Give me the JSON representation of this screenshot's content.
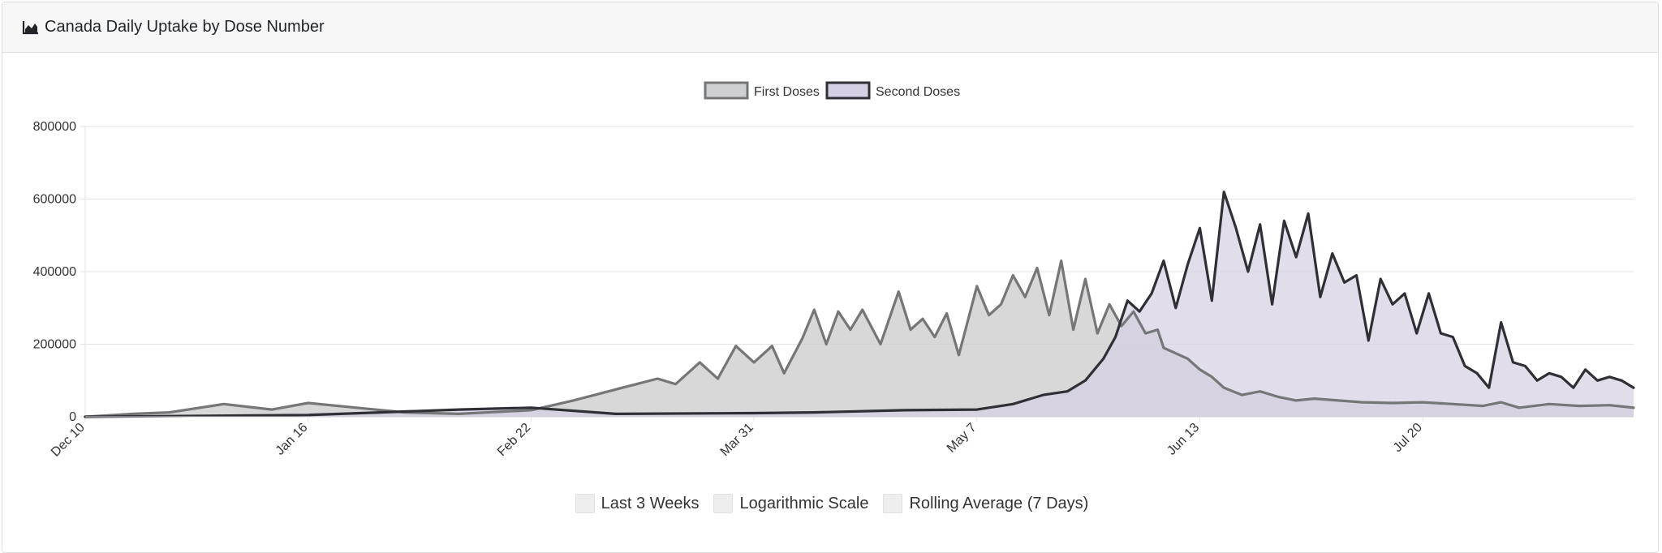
{
  "header": {
    "title": "Canada Daily Uptake by Dose Number",
    "icon": "area-chart-icon"
  },
  "controls": [
    {
      "label": "Last 3 Weeks",
      "checked": false
    },
    {
      "label": "Logarithmic Scale",
      "checked": false
    },
    {
      "label": "Rolling Average (7 Days)",
      "checked": false
    }
  ],
  "colors": {
    "first_line": "#747678",
    "first_fill": "#cfd0d1",
    "second_line": "#2f3035",
    "second_fill": "#d5d0e3",
    "grid": "#e3e3e3",
    "axis_text": "#333333"
  },
  "chart_data": {
    "type": "area",
    "title": "",
    "xlabel": "",
    "ylabel": "",
    "ylim": [
      0,
      800000
    ],
    "y_ticks": [
      0,
      200000,
      400000,
      600000,
      800000
    ],
    "y_tick_labels": [
      "0",
      "200000",
      "400000",
      "600000",
      "800000"
    ],
    "x_ticks": [
      "Dec 10",
      "Jan 16",
      "Feb 22",
      "Mar 31",
      "May 7",
      "Jun 13",
      "Jul 20"
    ],
    "x_start": "2020-12-10",
    "x_end": "2021-08-24",
    "legend_position": "top-center",
    "grid": true,
    "series": [
      {
        "name": "First Doses",
        "x": [
          "2020-12-10",
          "2020-12-18",
          "2020-12-24",
          "2021-01-02",
          "2021-01-10",
          "2021-01-16",
          "2021-01-24",
          "2021-02-01",
          "2021-02-10",
          "2021-02-22",
          "2021-03-01",
          "2021-03-08",
          "2021-03-15",
          "2021-03-18",
          "2021-03-22",
          "2021-03-25",
          "2021-03-28",
          "2021-03-31",
          "2021-04-03",
          "2021-04-05",
          "2021-04-08",
          "2021-04-10",
          "2021-04-12",
          "2021-04-14",
          "2021-04-16",
          "2021-04-18",
          "2021-04-21",
          "2021-04-24",
          "2021-04-26",
          "2021-04-28",
          "2021-04-30",
          "2021-05-02",
          "2021-05-04",
          "2021-05-07",
          "2021-05-09",
          "2021-05-11",
          "2021-05-13",
          "2021-05-15",
          "2021-05-17",
          "2021-05-19",
          "2021-05-21",
          "2021-05-23",
          "2021-05-25",
          "2021-05-27",
          "2021-05-29",
          "2021-05-31",
          "2021-06-02",
          "2021-06-04",
          "2021-06-06",
          "2021-06-07",
          "2021-06-09",
          "2021-06-11",
          "2021-06-13",
          "2021-06-15",
          "2021-06-17",
          "2021-06-20",
          "2021-06-23",
          "2021-06-26",
          "2021-06-29",
          "2021-07-02",
          "2021-07-06",
          "2021-07-10",
          "2021-07-15",
          "2021-07-20",
          "2021-07-25",
          "2021-07-30",
          "2021-08-02",
          "2021-08-05",
          "2021-08-10",
          "2021-08-15",
          "2021-08-20",
          "2021-08-24"
        ],
        "values": [
          0,
          8000,
          12000,
          35000,
          20000,
          38000,
          25000,
          12000,
          8000,
          18000,
          45000,
          75000,
          105000,
          90000,
          150000,
          105000,
          195000,
          150000,
          195000,
          120000,
          215000,
          295000,
          200000,
          290000,
          240000,
          295000,
          200000,
          345000,
          240000,
          270000,
          220000,
          285000,
          170000,
          360000,
          280000,
          310000,
          390000,
          330000,
          410000,
          280000,
          430000,
          240000,
          380000,
          230000,
          310000,
          250000,
          290000,
          230000,
          240000,
          190000,
          175000,
          160000,
          130000,
          110000,
          80000,
          60000,
          70000,
          55000,
          45000,
          50000,
          45000,
          40000,
          38000,
          40000,
          35000,
          30000,
          40000,
          25000,
          35000,
          30000,
          32000,
          25000
        ]
      },
      {
        "name": "Second Doses",
        "x": [
          "2020-12-10",
          "2021-01-01",
          "2021-01-16",
          "2021-01-28",
          "2021-02-10",
          "2021-02-22",
          "2021-03-08",
          "2021-03-31",
          "2021-04-10",
          "2021-04-25",
          "2021-05-07",
          "2021-05-13",
          "2021-05-18",
          "2021-05-22",
          "2021-05-25",
          "2021-05-28",
          "2021-05-30",
          "2021-06-01",
          "2021-06-03",
          "2021-06-05",
          "2021-06-07",
          "2021-06-09",
          "2021-06-11",
          "2021-06-13",
          "2021-06-15",
          "2021-06-17",
          "2021-06-19",
          "2021-06-21",
          "2021-06-23",
          "2021-06-25",
          "2021-06-27",
          "2021-06-29",
          "2021-07-01",
          "2021-07-03",
          "2021-07-05",
          "2021-07-07",
          "2021-07-09",
          "2021-07-11",
          "2021-07-13",
          "2021-07-15",
          "2021-07-17",
          "2021-07-19",
          "2021-07-21",
          "2021-07-23",
          "2021-07-25",
          "2021-07-27",
          "2021-07-29",
          "2021-07-31",
          "2021-08-02",
          "2021-08-04",
          "2021-08-06",
          "2021-08-08",
          "2021-08-10",
          "2021-08-12",
          "2021-08-14",
          "2021-08-16",
          "2021-08-18",
          "2021-08-20",
          "2021-08-22",
          "2021-08-24"
        ],
        "values": [
          0,
          3000,
          5000,
          12000,
          20000,
          25000,
          8000,
          10000,
          12000,
          18000,
          20000,
          35000,
          60000,
          70000,
          100000,
          160000,
          220000,
          320000,
          290000,
          340000,
          430000,
          300000,
          420000,
          520000,
          320000,
          620000,
          520000,
          400000,
          530000,
          310000,
          540000,
          440000,
          560000,
          330000,
          450000,
          370000,
          390000,
          210000,
          380000,
          310000,
          340000,
          230000,
          340000,
          230000,
          220000,
          140000,
          120000,
          80000,
          260000,
          150000,
          140000,
          100000,
          120000,
          110000,
          80000,
          130000,
          100000,
          110000,
          100000,
          80000
        ]
      }
    ]
  }
}
